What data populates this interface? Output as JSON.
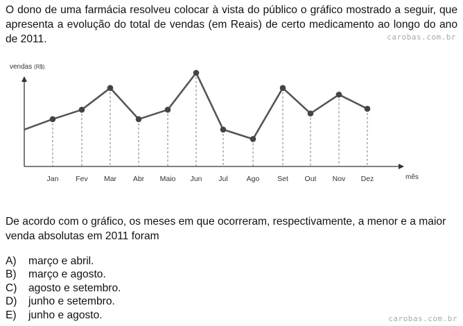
{
  "intro": "O dono de uma farmácia resolveu colocar à vista do público o gráfico mostrado a seguir, que apresenta a evolução do total de vendas (em Reais) de certo medicamento ao longo do ano de 2011.",
  "watermark": "carobas.com.br",
  "chart_data": {
    "type": "line",
    "ylabel": "vendas",
    "ylabel_unit": "(R$)",
    "xlabel": "mês",
    "categories": [
      "Jan",
      "Fev",
      "Mar",
      "Abr",
      "Maio",
      "Jun",
      "Jul",
      "Ago",
      "Set",
      "Out",
      "Nov",
      "Dez"
    ],
    "values": [
      5.0,
      6.0,
      8.3,
      5.0,
      6.0,
      9.9,
      3.9,
      2.9,
      8.3,
      5.6,
      7.6,
      6.1
    ],
    "start_value": 3.9,
    "ylim": [
      0,
      11
    ],
    "y_ticks_shown": false,
    "grid": "vertical dashed drop lines",
    "line_color": "#555555",
    "marker_color": "#444444"
  },
  "question": "De acordo com o gráfico, os meses em que ocorreram, respectivamente, a menor e a maior venda absolutas em 2011 foram",
  "options": [
    {
      "letter": "A)",
      "text": "março e abril."
    },
    {
      "letter": "B)",
      "text": "março e agosto."
    },
    {
      "letter": "C)",
      "text": "agosto e setembro."
    },
    {
      "letter": "D)",
      "text": "junho e setembro."
    },
    {
      "letter": "E)",
      "text": "junho e agosto."
    }
  ]
}
